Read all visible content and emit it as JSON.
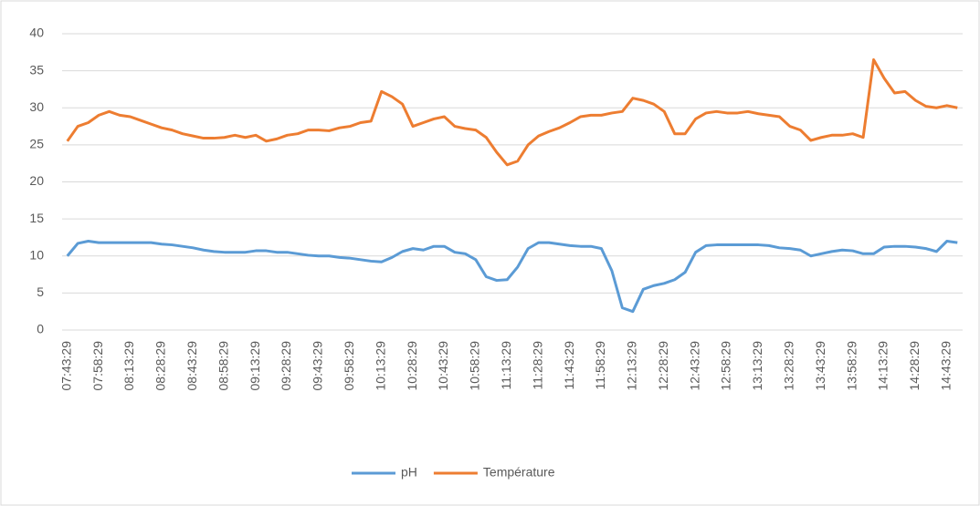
{
  "chart_data": {
    "type": "line",
    "categories": [
      "07:43:29",
      null,
      null,
      "07:58:29",
      null,
      null,
      "08:13:29",
      null,
      null,
      "08:28:29",
      null,
      null,
      "08:43:29",
      null,
      null,
      "08:58:29",
      null,
      null,
      "09:13:29",
      null,
      null,
      "09:28:29",
      null,
      null,
      "09:43:29",
      null,
      null,
      "09:58:29",
      null,
      null,
      "10:13:29",
      null,
      null,
      "10:28:29",
      null,
      null,
      "10:43:29",
      null,
      null,
      "10:58:29",
      null,
      null,
      "11:13:29",
      null,
      null,
      "11:28:29",
      null,
      null,
      "11:43:29",
      null,
      null,
      "11:58:29",
      null,
      null,
      "12:13:29",
      null,
      null,
      "12:28:29",
      null,
      null,
      "12:43:29",
      null,
      null,
      "12:58:29",
      null,
      null,
      "13:13:29",
      null,
      null,
      "13:28:29",
      null,
      null,
      "13:43:29",
      null,
      null,
      "13:58:29",
      null,
      null,
      "14:13:29",
      null,
      null,
      "14:28:29",
      null,
      null,
      "14:43:29",
      null
    ],
    "series": [
      {
        "name": "pH",
        "color": "#5b9bd5",
        "values": [
          10,
          11.7,
          12,
          11.8,
          11.8,
          11.8,
          11.8,
          11.8,
          11.8,
          11.6,
          11.5,
          11.3,
          11.1,
          10.8,
          10.6,
          10.5,
          10.5,
          10.5,
          10.7,
          10.7,
          10.5,
          10.5,
          10.3,
          10.1,
          10,
          10,
          9.8,
          9.7,
          9.5,
          9.3,
          9.2,
          9.8,
          10.6,
          11,
          10.8,
          11.3,
          11.3,
          10.5,
          10.3,
          9.5,
          7.2,
          6.7,
          6.8,
          8.5,
          11,
          11.8,
          11.8,
          11.6,
          11.4,
          11.3,
          11.3,
          11,
          8,
          3,
          2.5,
          5.5,
          6,
          6.3,
          6.8,
          7.8,
          10.5,
          11.4,
          11.5,
          11.5,
          11.5,
          11.5,
          11.5,
          11.4,
          11.1,
          11,
          10.8,
          10,
          10.3,
          10.6,
          10.8,
          10.7,
          10.3,
          10.3,
          11.2,
          11.3,
          11.3,
          11.2,
          11,
          10.6,
          12,
          11.8
        ]
      },
      {
        "name": "Température",
        "color": "#ed7d31",
        "values": [
          25.5,
          27.5,
          28,
          29,
          29.5,
          29,
          28.8,
          28.3,
          27.8,
          27.3,
          27,
          26.5,
          26.2,
          25.9,
          25.9,
          26,
          26.3,
          26,
          26.3,
          25.5,
          25.8,
          26.3,
          26.5,
          27,
          27,
          26.9,
          27.3,
          27.5,
          28,
          28.2,
          32.2,
          31.5,
          30.5,
          27.5,
          28,
          28.5,
          28.8,
          27.5,
          27.2,
          27,
          26,
          24,
          22.3,
          22.8,
          25,
          26.2,
          26.8,
          27.3,
          28,
          28.8,
          29,
          29,
          29.3,
          29.5,
          31.3,
          31,
          30.5,
          29.5,
          26.5,
          26.5,
          28.5,
          29.3,
          29.5,
          29.3,
          29.3,
          29.5,
          29.2,
          29,
          28.8,
          27.5,
          27,
          25.6,
          26,
          26.3,
          26.3,
          26.5,
          26,
          36.5,
          34,
          32,
          32.2,
          31,
          30.2,
          30,
          30.3,
          30
        ]
      }
    ],
    "ylim": [
      0,
      40
    ],
    "yticks": [
      0,
      5,
      10,
      15,
      20,
      25,
      30,
      35,
      40
    ],
    "grid": true,
    "legend": "bottom"
  }
}
